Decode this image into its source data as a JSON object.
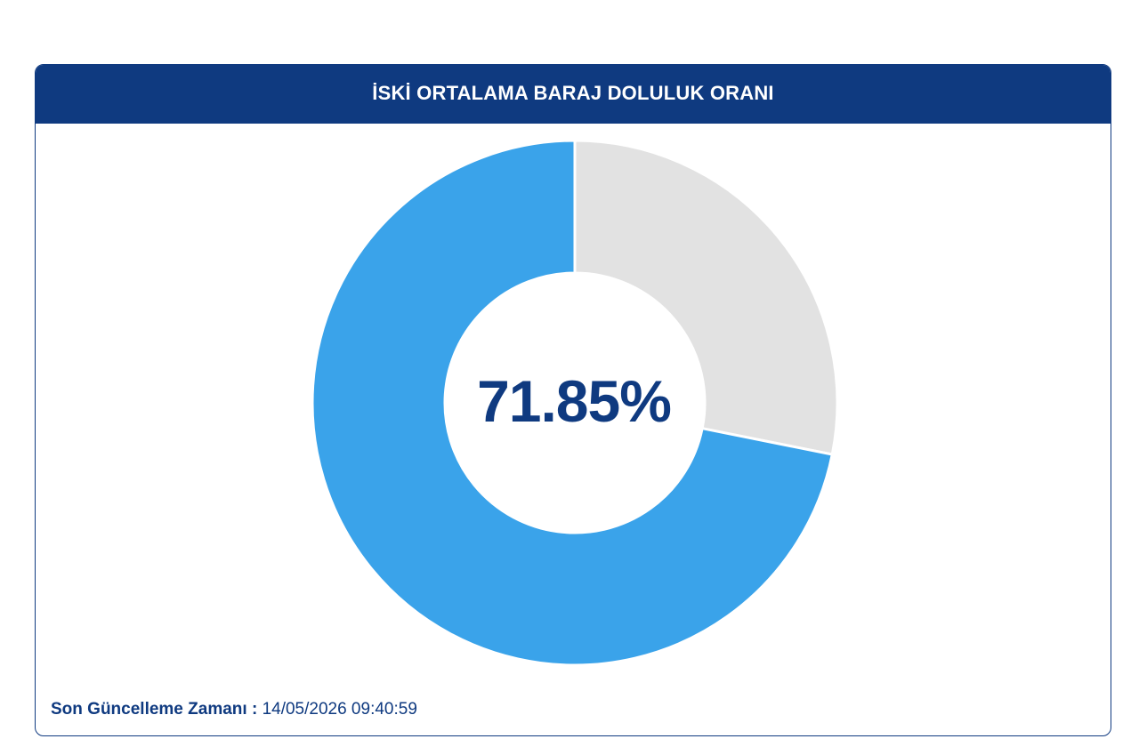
{
  "header": {
    "title": "İSKİ ORTALAMA BARAJ DOLULUK ORANI"
  },
  "chart_data": {
    "type": "pie",
    "variant": "donut",
    "title": "İSKİ ORTALAMA BARAJ DOLULUK ORANI",
    "center_label": "71.85%",
    "slices": [
      {
        "name": "",
        "value": 71.85,
        "color": "#3aa3ea"
      },
      {
        "name": "",
        "value": 28.15,
        "color": "#e2e2e2"
      }
    ]
  },
  "footer": {
    "label": "Son Güncelleme Zamanı :",
    "value": "14/05/2026 09:40:59"
  }
}
